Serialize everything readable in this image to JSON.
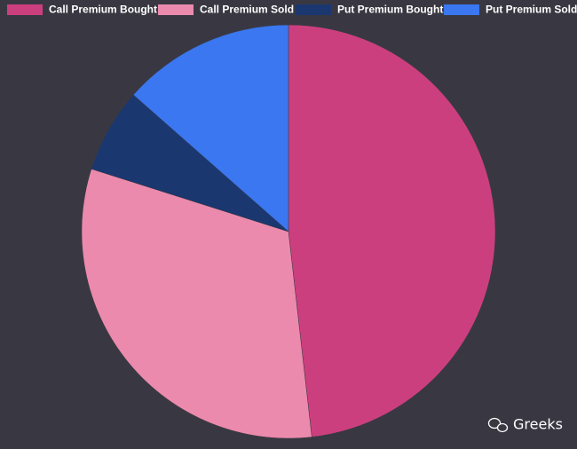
{
  "chart_data": {
    "type": "pie",
    "categories": [
      "Call Premium Bought",
      "Call Premium Sold",
      "Put Premium Bought",
      "Put Premium Sold"
    ],
    "values": [
      48.2,
      31.7,
      6.6,
      13.5
    ],
    "colors": [
      "#cc3f7f",
      "#eb8aad",
      "#1a3770",
      "#3a77f0"
    ],
    "legend": "top"
  },
  "watermark": "Greeks"
}
